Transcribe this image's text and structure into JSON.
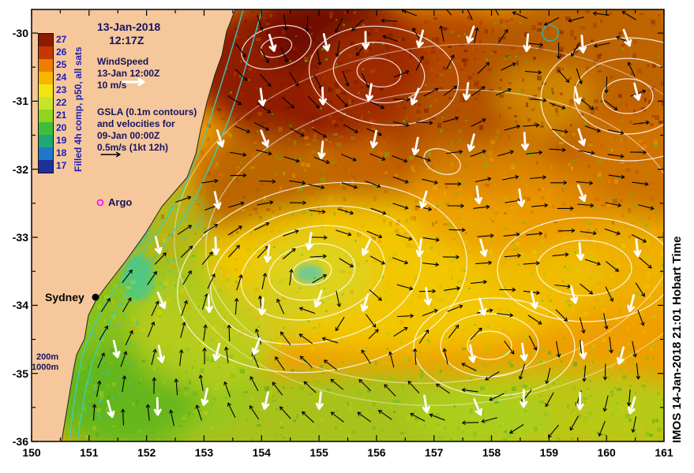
{
  "title": {
    "line1": "13-Jan-2018",
    "line2": "12:17Z"
  },
  "colorbar": {
    "label": "Filled 4h comp, p50, all sats",
    "ticks": [
      "27",
      "26",
      "25",
      "24",
      "23",
      "22",
      "21",
      "20",
      "19",
      "18",
      "17"
    ],
    "colors": [
      "#8f1a00",
      "#c63800",
      "#ef7c00",
      "#f7b500",
      "#f2e312",
      "#c8e42a",
      "#8fd41e",
      "#3fbe3c",
      "#1ea878",
      "#1e78c8",
      "#20309b"
    ]
  },
  "wind_legend": {
    "title": "WindSpeed",
    "date": "13-Jan 12:00Z",
    "scale": "10 m/s"
  },
  "gsla_legend": {
    "line1": "GSLA (0.1m contours)",
    "line2": "and velocities for",
    "line3": "09-Jan 00:00Z",
    "line4": "0.5m/s (1kt 12h)"
  },
  "markers": {
    "argo_label": "Argo",
    "city_label": "Sydney",
    "bathy_200": "200m",
    "bathy_1000": "1000m"
  },
  "watermark": "IMOS 14-Jan-2018 21:01 Hobart Time",
  "axes": {
    "x_ticks": [
      150,
      151,
      152,
      153,
      154,
      155,
      156,
      157,
      158,
      159,
      160,
      161
    ],
    "y_ticks": [
      -30,
      -31,
      -32,
      -33,
      -34,
      -35,
      -36
    ],
    "x_range": [
      150,
      161
    ],
    "y_range": [
      -36,
      -30
    ]
  },
  "map_colors": {
    "land": "#f6c79b",
    "ocean_base": "#ef9f00",
    "gsla_contour": "#ffffff",
    "bathymetry": "#35d0c0",
    "argo_marker": "#ff00ff",
    "wind_arrow": "#ffffff",
    "velocity_arrow": "#000000"
  }
}
